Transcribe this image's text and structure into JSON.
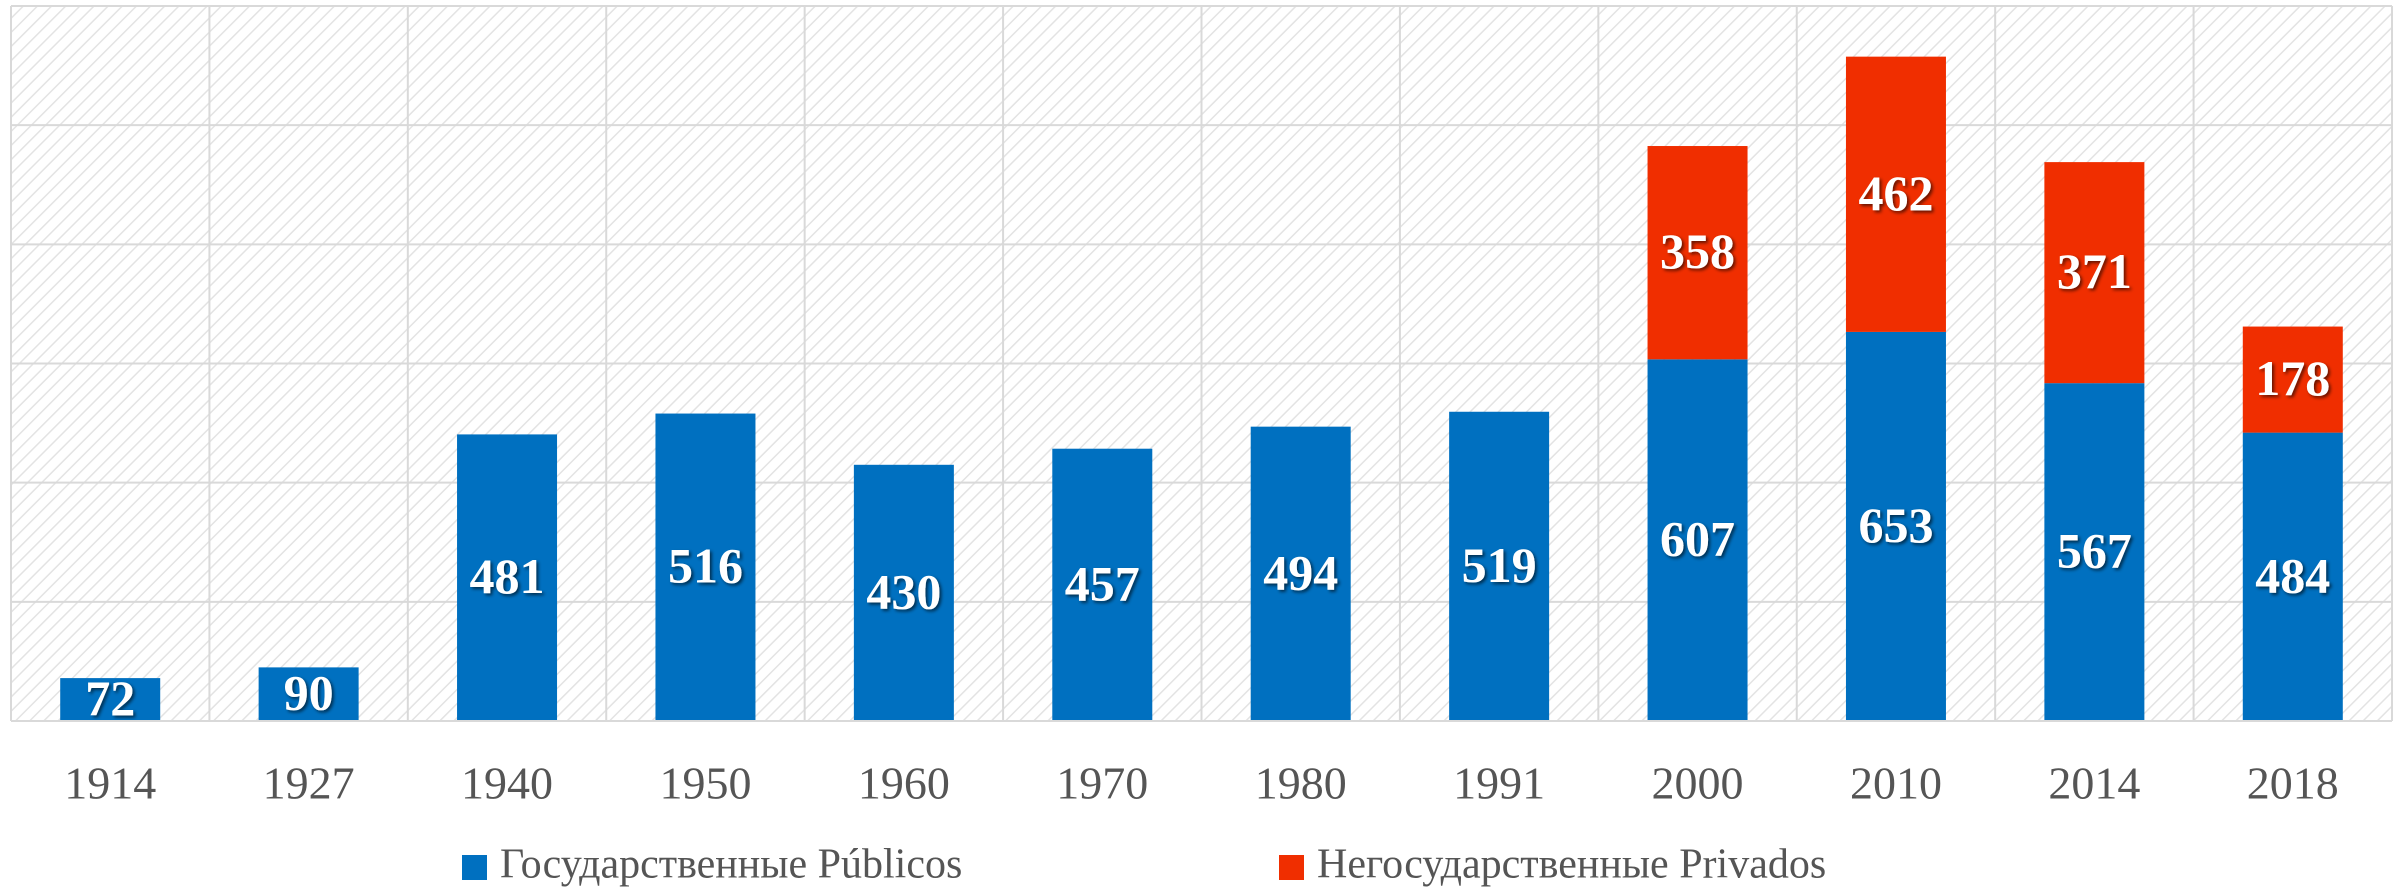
{
  "chart_data": {
    "type": "stacked-bar",
    "categories": [
      "1914",
      "1927",
      "1940",
      "1950",
      "1960",
      "1970",
      "1980",
      "1991",
      "2000",
      "2010",
      "2014",
      "2018"
    ],
    "series": [
      {
        "name": "Государственные Públicos",
        "color": "#0070c0",
        "values": [
          72,
          90,
          481,
          516,
          430,
          457,
          494,
          519,
          607,
          653,
          567,
          484
        ]
      },
      {
        "name": "Негосударственные Privados",
        "color": "#f02e00",
        "values": [
          null,
          null,
          null,
          null,
          null,
          null,
          null,
          null,
          358,
          462,
          371,
          178
        ]
      }
    ],
    "ylim": [
      0,
      1200
    ],
    "yticks": [
      0,
      200,
      400,
      600,
      800,
      1000,
      1200
    ],
    "grid": true,
    "legend": "bottom"
  }
}
